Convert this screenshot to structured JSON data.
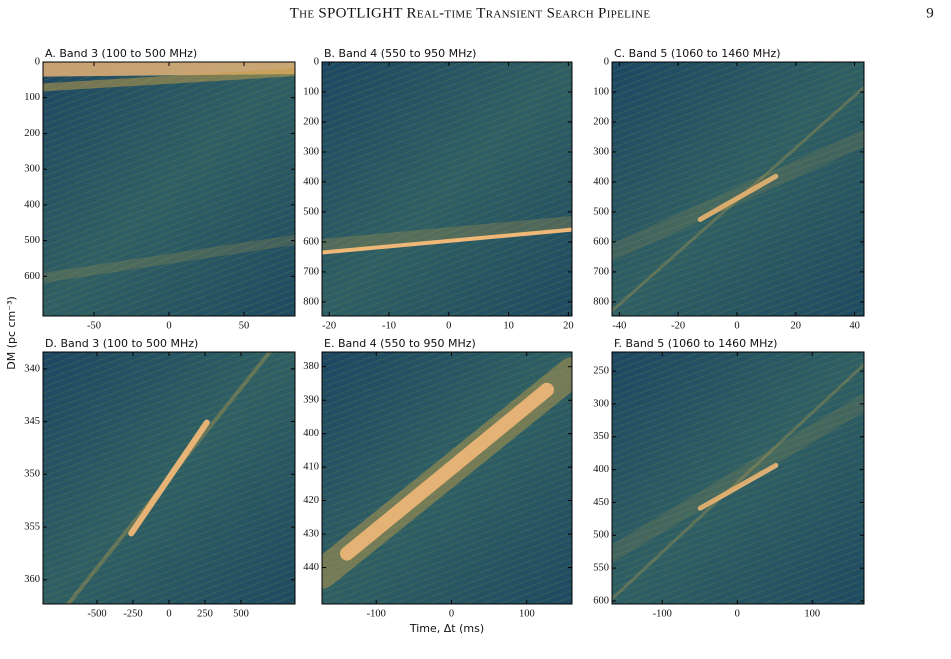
{
  "header": {
    "title": "The SPOTLIGHT Real-time Transient Search Pipeline",
    "page_number": 9
  },
  "figure": {
    "ylabel": "DM (pc cm⁻³)"
  },
  "chart_data": [
    {
      "type": "heatmap",
      "title": "A. Band 3 (100 to 500 MHz)",
      "xlim": [
        -84,
        84
      ],
      "xticks": [
        -50,
        0,
        50
      ],
      "ylim": [
        0,
        711
      ],
      "yticks": [
        0,
        100,
        200,
        300,
        400,
        500,
        600
      ],
      "y_inverted": true
    },
    {
      "type": "heatmap",
      "title": "B. Band 4 (550 to 950 MHz)",
      "xlim": [
        -21.2,
        20.6
      ],
      "xticks": [
        -20,
        -10,
        0,
        10,
        20
      ],
      "ylim": [
        0,
        847
      ],
      "yticks": [
        0,
        100,
        200,
        300,
        400,
        500,
        600,
        700,
        800
      ],
      "y_inverted": true
    },
    {
      "type": "heatmap",
      "title": "C. Band 5 (1060 to 1460 MHz)",
      "xlim": [
        -42.5,
        43.2
      ],
      "xticks": [
        -40,
        -20,
        0,
        20,
        40
      ],
      "ylim": [
        0,
        847
      ],
      "yticks": [
        0,
        100,
        200,
        300,
        400,
        500,
        600,
        700,
        800
      ],
      "y_inverted": true
    },
    {
      "type": "heatmap",
      "title": "D. Band 3 (100 to 500 MHz)",
      "xlim": [
        -875,
        875
      ],
      "xticks": [
        -500,
        -250,
        0,
        250,
        500
      ],
      "ylim": [
        338.4,
        362.3
      ],
      "yticks": [
        340,
        345,
        350,
        355,
        360
      ],
      "y_inverted": true
    },
    {
      "type": "heatmap",
      "title": "E. Band 4 (550 to 950 MHz)",
      "xlim": [
        -172,
        160
      ],
      "xticks": [
        -100,
        0,
        100
      ],
      "ylim": [
        375.6,
        450.9
      ],
      "yticks": [
        380,
        390,
        400,
        410,
        420,
        430,
        440
      ],
      "y_inverted": true,
      "xlabel": "Time, Δt (ms)"
    },
    {
      "type": "heatmap",
      "title": "F. Band 5 (1060 to 1460 MHz)",
      "xlim": [
        -167,
        169
      ],
      "xticks": [
        -100,
        0,
        100
      ],
      "ylim": [
        221,
        604.6
      ],
      "yticks": [
        250,
        300,
        350,
        400,
        450,
        500,
        550,
        600
      ],
      "y_inverted": true
    }
  ]
}
